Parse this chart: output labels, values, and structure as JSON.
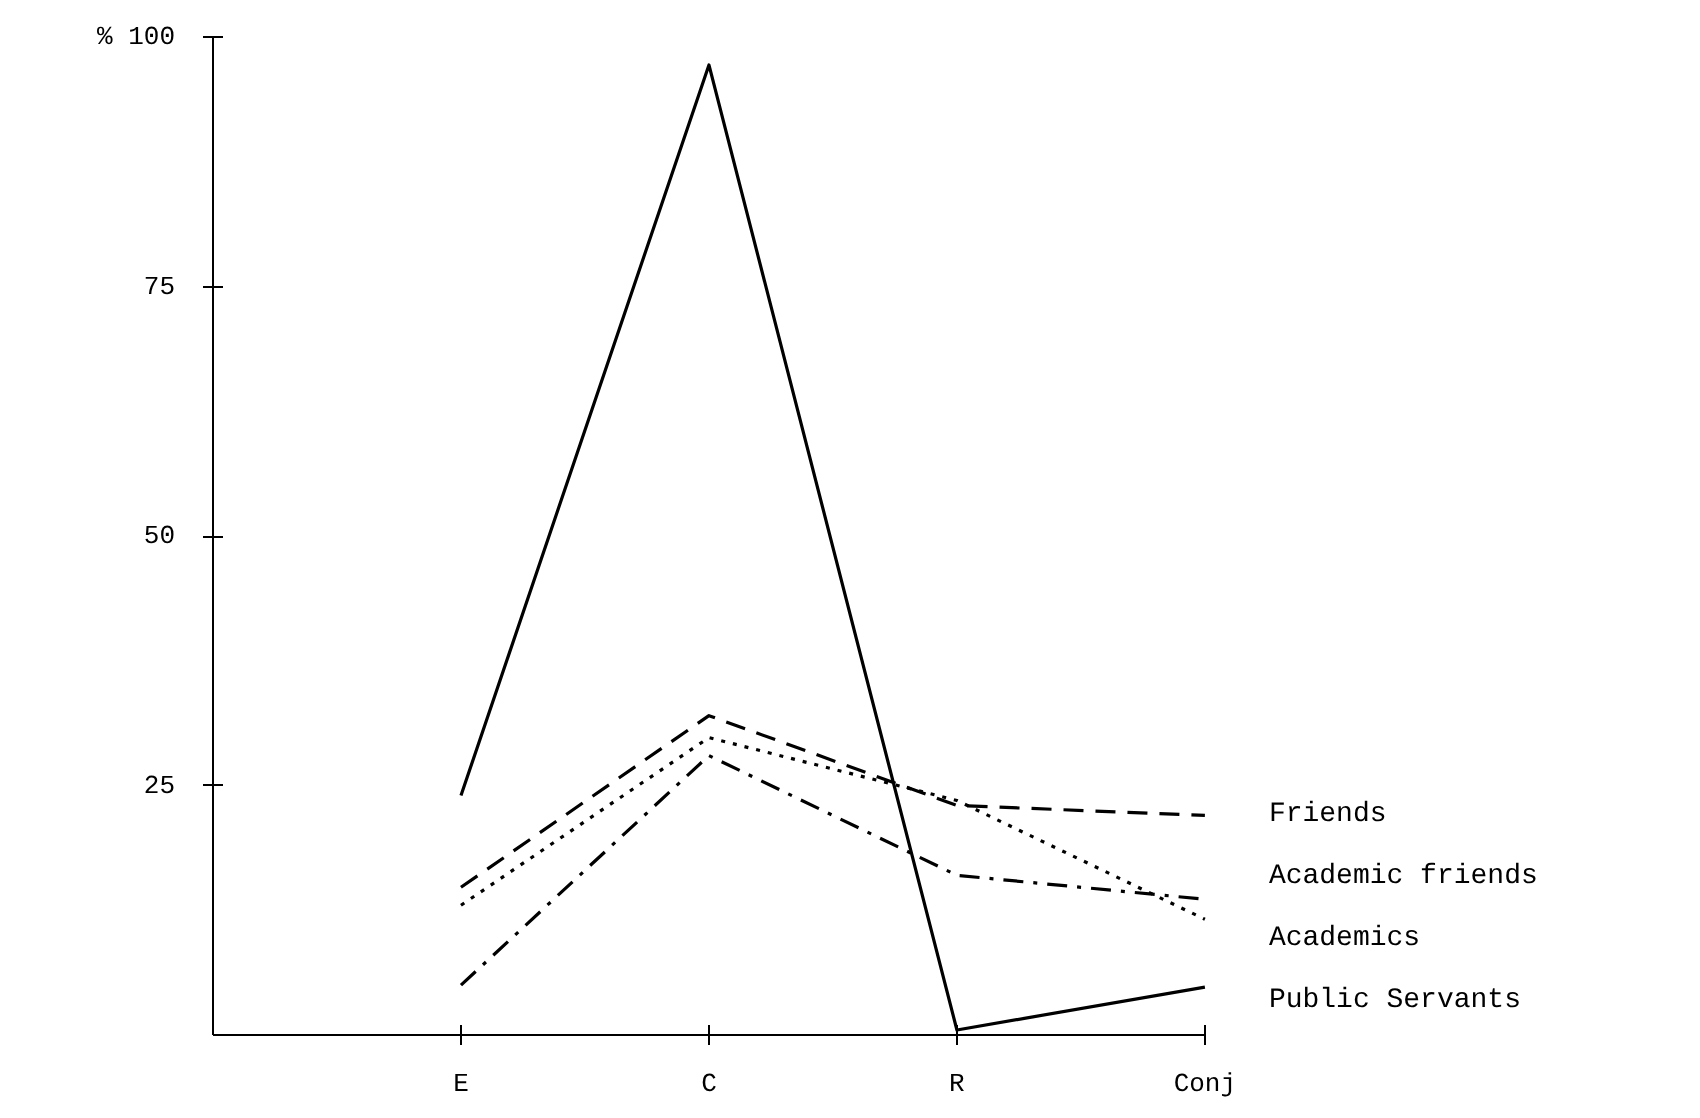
{
  "chart_data": {
    "type": "line",
    "categories": [
      "E",
      "C",
      "R",
      "Conj"
    ],
    "ylim": [
      0,
      100
    ],
    "yticks": [
      25,
      50,
      75,
      {
        "value": 100,
        "label": "% 100"
      }
    ],
    "grid": false,
    "marker": "none",
    "series": [
      {
        "name": "Friends",
        "color": "#000000",
        "line_style": "dashed",
        "values": [
          14.8,
          32,
          23,
          22
        ]
      },
      {
        "name": "Academic friends",
        "color": "#000000",
        "line_style": "dashdot",
        "values": [
          5,
          28,
          16,
          13.6
        ]
      },
      {
        "name": "Academics",
        "color": "#000000",
        "line_style": "dotted",
        "values": [
          13,
          29.8,
          23.5,
          11.6
        ]
      },
      {
        "name": "Public Servants",
        "color": "#000000",
        "line_style": "solid",
        "values": [
          24,
          97.2,
          0.5,
          4.8
        ]
      }
    ]
  }
}
